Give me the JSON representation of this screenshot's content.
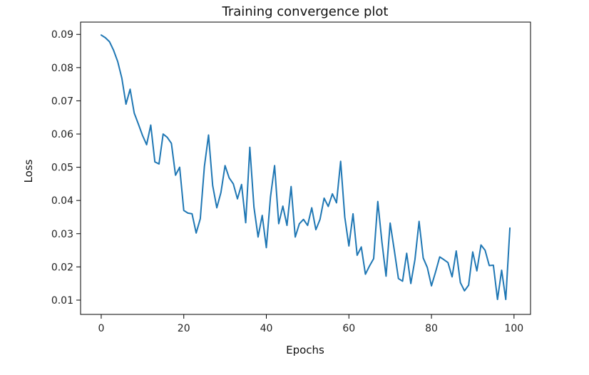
{
  "chart_data": {
    "type": "line",
    "title": "Training convergence plot",
    "xlabel": "Epochs",
    "ylabel": "Loss",
    "xlim": [
      -5,
      104
    ],
    "ylim": [
      0.0057,
      0.0937
    ],
    "xticks": [
      0,
      20,
      40,
      60,
      80,
      100
    ],
    "yticks": [
      0.01,
      0.02,
      0.03,
      0.04,
      0.05,
      0.06,
      0.07,
      0.08,
      0.09
    ],
    "ytick_labels": [
      "0.01",
      "0.02",
      "0.03",
      "0.04",
      "0.05",
      "0.06",
      "0.07",
      "0.08",
      "0.09"
    ],
    "grid": false,
    "line_color": "#1f77b4",
    "series": [
      {
        "name": "",
        "x": [
          0,
          1,
          2,
          3,
          4,
          5,
          6,
          7,
          8,
          9,
          10,
          11,
          12,
          13,
          14,
          15,
          16,
          17,
          18,
          19,
          20,
          21,
          22,
          23,
          24,
          25,
          26,
          27,
          28,
          29,
          30,
          31,
          32,
          33,
          34,
          35,
          36,
          37,
          38,
          39,
          40,
          41,
          42,
          43,
          44,
          45,
          46,
          47,
          48,
          49,
          50,
          51,
          52,
          53,
          54,
          55,
          56,
          57,
          58,
          59,
          60,
          61,
          62,
          63,
          64,
          65,
          66,
          67,
          68,
          69,
          70,
          71,
          72,
          73,
          74,
          75,
          76,
          77,
          78,
          79,
          80,
          81,
          82,
          83,
          84,
          85,
          86,
          87,
          88,
          89,
          90,
          91,
          92,
          93,
          94,
          95,
          96,
          97,
          98,
          99
        ],
        "y": [
          0.0898,
          0.089,
          0.0878,
          0.0852,
          0.0818,
          0.0768,
          0.069,
          0.0735,
          0.0663,
          0.063,
          0.0596,
          0.0568,
          0.0627,
          0.0516,
          0.051,
          0.06,
          0.059,
          0.0572,
          0.0476,
          0.05,
          0.037,
          0.0362,
          0.036,
          0.0302,
          0.0345,
          0.0503,
          0.0597,
          0.0445,
          0.0378,
          0.0424,
          0.0505,
          0.0468,
          0.045,
          0.0405,
          0.0448,
          0.0333,
          0.056,
          0.038,
          0.029,
          0.0355,
          0.0258,
          0.041,
          0.0505,
          0.033,
          0.0383,
          0.0325,
          0.0442,
          0.029,
          0.033,
          0.0343,
          0.0325,
          0.0378,
          0.0312,
          0.0343,
          0.0407,
          0.0382,
          0.042,
          0.0393,
          0.0518,
          0.035,
          0.0263,
          0.036,
          0.0235,
          0.026,
          0.0178,
          0.0203,
          0.0225,
          0.0397,
          0.0275,
          0.0172,
          0.0332,
          0.025,
          0.0165,
          0.0157,
          0.0241,
          0.015,
          0.0222,
          0.0337,
          0.0227,
          0.0198,
          0.0143,
          0.0185,
          0.023,
          0.0222,
          0.0213,
          0.017,
          0.0248,
          0.0153,
          0.0128,
          0.0145,
          0.0245,
          0.0188,
          0.0266,
          0.025,
          0.0204,
          0.0205,
          0.0102,
          0.019,
          0.0102,
          0.0317
        ]
      }
    ]
  }
}
